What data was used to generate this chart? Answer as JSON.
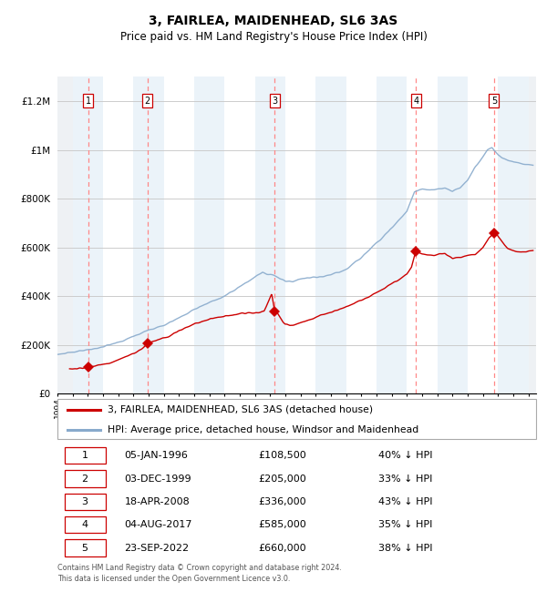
{
  "title": "3, FAIRLEA, MAIDENHEAD, SL6 3AS",
  "subtitle": "Price paid vs. HM Land Registry's House Price Index (HPI)",
  "xlim_start": 1994.0,
  "xlim_end": 2025.5,
  "ylim_min": 0,
  "ylim_max": 1300000,
  "yticks": [
    0,
    200000,
    400000,
    600000,
    800000,
    1000000,
    1200000
  ],
  "ytick_labels": [
    "£0",
    "£200K",
    "£400K",
    "£600K",
    "£800K",
    "£1M",
    "£1.2M"
  ],
  "sale_dates_decimal": [
    1996.02,
    1999.92,
    2008.3,
    2017.59,
    2022.73
  ],
  "sale_prices": [
    108500,
    205000,
    336000,
    585000,
    660000
  ],
  "sale_numbers": [
    "1",
    "2",
    "3",
    "4",
    "5"
  ],
  "red_line_color": "#cc0000",
  "blue_line_color": "#88aacc",
  "sale_marker_color": "#cc0000",
  "dashed_line_color": "#ff8888",
  "background_shading_color": "#d8e8f4",
  "grid_color": "#cccccc",
  "legend_entries": [
    "3, FAIRLEA, MAIDENHEAD, SL6 3AS (detached house)",
    "HPI: Average price, detached house, Windsor and Maidenhead"
  ],
  "table_data": [
    [
      "1",
      "05-JAN-1996",
      "£108,500",
      "40% ↓ HPI"
    ],
    [
      "2",
      "03-DEC-1999",
      "£205,000",
      "33% ↓ HPI"
    ],
    [
      "3",
      "18-APR-2008",
      "£336,000",
      "43% ↓ HPI"
    ],
    [
      "4",
      "04-AUG-2017",
      "£585,000",
      "35% ↓ HPI"
    ],
    [
      "5",
      "23-SEP-2022",
      "£660,000",
      "38% ↓ HPI"
    ]
  ],
  "footnote": "Contains HM Land Registry data © Crown copyright and database right 2024.\nThis data is licensed under the Open Government Licence v3.0.",
  "title_fontsize": 10,
  "subtitle_fontsize": 8.5,
  "axis_fontsize": 7.5
}
